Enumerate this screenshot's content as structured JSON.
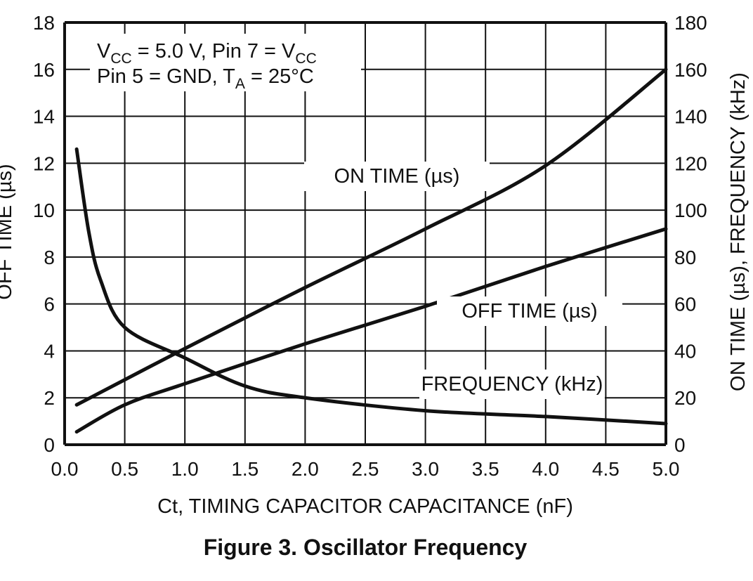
{
  "chart_data": {
    "type": "line",
    "title": "Figure 3. Oscillator Frequency",
    "xlabel": "Ct, TIMING CAPACITOR CAPACITANCE (nF)",
    "ylabel_left": "OFF TIME (µs)",
    "ylabel_right": "ON TIME (µs), FREQUENCY (kHz)",
    "xlim": [
      0,
      5.0
    ],
    "ylim_left": [
      0,
      18
    ],
    "ylim_right": [
      0,
      180
    ],
    "x_ticks": [
      "0.0",
      "0.5",
      "1.0",
      "1.5",
      "2.0",
      "2.5",
      "3.0",
      "3.5",
      "4.0",
      "4.5",
      "5.0"
    ],
    "y_ticks_left": [
      "0",
      "2",
      "4",
      "6",
      "8",
      "10",
      "12",
      "14",
      "16",
      "18"
    ],
    "y_ticks_right": [
      "0",
      "20",
      "40",
      "60",
      "80",
      "100",
      "120",
      "140",
      "160",
      "180"
    ],
    "grid": true,
    "conditions": {
      "line1_pre": "V",
      "line1_sub1": "CC",
      "line1_mid": " = 5.0 V, Pin 7 = V",
      "line1_sub2": "CC",
      "line2_pre": "Pin 5 = GND, T",
      "line2_sub": "A",
      "line2_post": " = 25°C"
    },
    "series": [
      {
        "name": "ON TIME (µs)",
        "axis": "right",
        "x": [
          0.1,
          1.0,
          2.0,
          3.0,
          4.0,
          5.0
        ],
        "y": [
          17,
          41,
          67,
          92,
          119,
          160
        ]
      },
      {
        "name": "OFF TIME (µs)",
        "axis": "left",
        "x": [
          0.1,
          0.5,
          1.0,
          2.0,
          3.0,
          4.0,
          5.0
        ],
        "y": [
          0.55,
          1.7,
          2.6,
          4.3,
          5.9,
          7.6,
          9.2
        ]
      },
      {
        "name": "FREQUENCY (kHz)",
        "axis": "right",
        "x": [
          0.1,
          0.2,
          0.3,
          0.5,
          1.0,
          1.5,
          2.0,
          3.0,
          4.0,
          5.0
        ],
        "y": [
          126,
          91,
          70,
          50,
          37,
          25,
          20,
          14.5,
          12,
          9
        ]
      }
    ]
  }
}
